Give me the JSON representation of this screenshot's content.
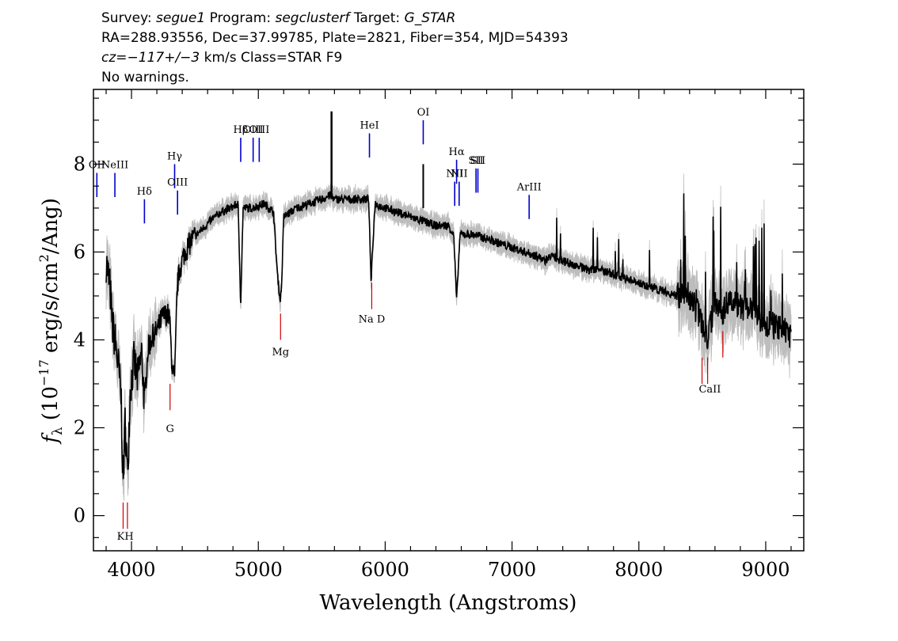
{
  "header": {
    "survey_label": "Survey:",
    "survey": "segue1",
    "program_label": "Program:",
    "program": "segclusterf",
    "target_label": "Target:",
    "target": "G_STAR",
    "line2": "RA=288.93556, Dec=37.99785, Plate=2821, Fiber=354, MJD=54393",
    "cz": "cz=−117+/−3",
    "cz_rest": " km/s Class=STAR F9",
    "line4": "No warnings."
  },
  "chart_data": {
    "type": "line",
    "xlabel": "Wavelength (Angstroms)",
    "ylabel": "f_λ (10^-17 erg/s/cm^2/Ang)",
    "xlim": [
      3700,
      9300
    ],
    "ylim": [
      -0.8,
      9.7
    ],
    "xticks": [
      4000,
      5000,
      6000,
      7000,
      8000,
      9000
    ],
    "yticks": [
      0,
      2,
      4,
      6,
      8
    ],
    "grid": false,
    "series": [
      {
        "color": "#000000",
        "x": [
          3800,
          3830,
          3850,
          3870,
          3900,
          3920,
          3934,
          3950,
          3968,
          3990,
          4020,
          4050,
          4080,
          4102,
          4130,
          4170,
          4200,
          4240,
          4280,
          4300,
          4320,
          4340,
          4360,
          4380,
          4420,
          4480,
          4550,
          4620,
          4700,
          4780,
          4840,
          4861,
          4880,
          4950,
          5050,
          5120,
          5150,
          5172,
          5183,
          5200,
          5300,
          5400,
          5500,
          5577,
          5600,
          5700,
          5800,
          5870,
          5890,
          5896,
          5920,
          6000,
          6100,
          6200,
          6300,
          6400,
          6500,
          6540,
          6563,
          6590,
          6700,
          6800,
          6900,
          7000,
          7100,
          7200,
          7260,
          7300,
          7400,
          7500,
          7600,
          7700,
          7800,
          7900,
          8000,
          8100,
          8200,
          8300,
          8400,
          8498,
          8542,
          8600,
          8662,
          8700,
          8800,
          8900,
          9000,
          9100,
          9200
        ],
        "values": [
          5.8,
          5.2,
          4.3,
          4.0,
          3.3,
          2.6,
          0.6,
          2.2,
          0.9,
          2.9,
          3.5,
          3.1,
          3.7,
          2.6,
          3.8,
          4.1,
          4.2,
          4.5,
          4.6,
          4.5,
          3.4,
          3.0,
          5.2,
          5.6,
          6.0,
          6.3,
          6.5,
          6.7,
          6.9,
          7.0,
          7.1,
          4.8,
          7.0,
          7.0,
          7.1,
          6.9,
          5.5,
          4.9,
          5.2,
          6.8,
          7.0,
          7.1,
          7.2,
          7.3,
          7.2,
          7.2,
          7.2,
          7.2,
          5.2,
          5.8,
          7.1,
          7.0,
          6.9,
          6.8,
          6.7,
          6.6,
          6.6,
          6.4,
          4.9,
          6.4,
          6.4,
          6.3,
          6.2,
          6.1,
          6.0,
          5.9,
          5.8,
          5.9,
          5.8,
          5.7,
          5.6,
          5.6,
          5.5,
          5.4,
          5.3,
          5.2,
          5.1,
          5.0,
          5.0,
          4.4,
          4.0,
          4.9,
          4.6,
          4.9,
          4.8,
          4.6,
          4.4,
          4.3,
          4.1
        ]
      }
    ],
    "emission_lines": [
      {
        "label": "OII",
        "x": 3727,
        "y": 7.8
      },
      {
        "label": "NeIII",
        "x": 3869,
        "y": 7.8
      },
      {
        "label": "Hδ",
        "x": 4102,
        "y": 7.2
      },
      {
        "label": "Hγ",
        "x": 4340,
        "y": 8.0
      },
      {
        "label": "OIII",
        "x": 4363,
        "y": 7.4
      },
      {
        "label": "Hβ",
        "x": 4861,
        "y": 8.6
      },
      {
        "label": "OIII",
        "x": 4959,
        "y": 8.6
      },
      {
        "label": "OIII",
        "x": 5007,
        "y": 8.6
      },
      {
        "label": "HeI",
        "x": 5876,
        "y": 8.7
      },
      {
        "label": "OI",
        "x": 6300,
        "y": 9.0
      },
      {
        "label": "NII",
        "x": 6548,
        "y": 7.6
      },
      {
        "label": "Hα",
        "x": 6563,
        "y": 8.1
      },
      {
        "label": "NII",
        "x": 6583,
        "y": 7.6
      },
      {
        "label": "SII",
        "x": 6716,
        "y": 7.9
      },
      {
        "label": "SII",
        "x": 6731,
        "y": 7.9
      },
      {
        "label": "ArIII",
        "x": 7135,
        "y": 7.3
      }
    ],
    "absorption_lines": [
      {
        "label": "K",
        "x": 3934,
        "y": 0.3
      },
      {
        "label": "H",
        "x": 3968,
        "y": 0.3
      },
      {
        "label": "G",
        "x": 4304,
        "y": 3.0
      },
      {
        "label": "Mg",
        "x": 5175,
        "y": 4.6
      },
      {
        "label": "Na",
        "x": 5894,
        "y": 5.3
      },
      {
        "label": "CaII",
        "x": 8498,
        "y": 3.6
      },
      {
        "label": "CaII",
        "x": 8542,
        "y": 3.6
      },
      {
        "label": "CaII",
        "x": 8662,
        "y": 4.2
      }
    ],
    "absorption_labels": [
      {
        "text": "KH",
        "x": 3951,
        "y": -0.55
      },
      {
        "text": "G",
        "x": 4304,
        "y": 1.9
      },
      {
        "text": "Mg",
        "x": 5175,
        "y": 3.65
      },
      {
        "text": "Na D",
        "x": 5894,
        "y": 4.4
      },
      {
        "text": "CaII",
        "x": 8560,
        "y": 2.8
      }
    ],
    "colors": {
      "flux": "#000000",
      "error_band": "#bdbdbd",
      "emission": "#0000cc",
      "absorption": "#cc0000"
    }
  }
}
